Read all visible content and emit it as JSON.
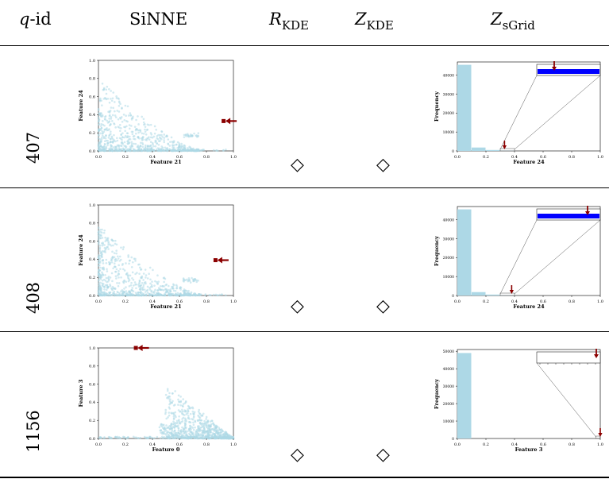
{
  "header": {
    "qid_q": "q",
    "qid_rest": "-id",
    "sinne": "SiNNE",
    "rkde_main": "R",
    "rkde_sub": "KDE",
    "zkde_main": "Z",
    "zkde_sub": "KDE",
    "zsgrid_main": "Z",
    "zsgrid_sub": "sGrid"
  },
  "rows": [
    {
      "qid": "407",
      "rkde": "◇",
      "zkde": "◇",
      "scatter": {
        "xlabel": "Feature 21",
        "ylabel": "Feature 24",
        "query_point": [
          0.93,
          0.33
        ]
      },
      "hist": {
        "xlabel": "Feature 24",
        "ylabel": "Frequency",
        "query_value": 0.33
      }
    },
    {
      "qid": "408",
      "rkde": "◇",
      "zkde": "◇",
      "scatter": {
        "xlabel": "Feature 21",
        "ylabel": "Feature 24",
        "query_point": [
          0.87,
          0.39
        ]
      },
      "hist": {
        "xlabel": "Feature 24",
        "ylabel": "Frequency",
        "query_value": 0.38
      }
    },
    {
      "qid": "1156",
      "rkde": "◇",
      "zkde": "◇",
      "scatter": {
        "xlabel": "Feature 0",
        "ylabel": "Feature 3",
        "query_point": [
          0.28,
          1.0
        ]
      },
      "hist": {
        "xlabel": "Feature 3",
        "ylabel": "Frequency",
        "query_value": 1.0
      }
    }
  ],
  "chart_data": [
    {
      "type": "scatter",
      "panel": "row-407",
      "xlabel": "Feature 21",
      "ylabel": "Feature 24",
      "xlim": [
        0,
        1
      ],
      "ylim": [
        0,
        1
      ],
      "x_ticks": [
        "0.0",
        "0.2",
        "0.4",
        "0.6",
        "0.8",
        "1.0"
      ],
      "y_ticks": [
        "0.0",
        "0.2",
        "0.4",
        "0.6",
        "0.8",
        "1.0"
      ],
      "query_point": {
        "x": 0.93,
        "y": 0.33
      }
    },
    {
      "type": "bar",
      "panel": "row-407",
      "xlabel": "Feature 24",
      "ylabel": "Frequency",
      "categories": [
        "0.0-0.1",
        "0.1-0.2",
        "0.2-0.3",
        "0.3-0.4"
      ],
      "values": [
        45500,
        1800,
        500,
        150
      ],
      "ylim": [
        0,
        47000
      ],
      "x_ticks": [
        "0.0",
        "0.2",
        "0.4",
        "0.6",
        "0.8",
        "1.0"
      ],
      "y_ticks": [
        "0",
        "10000",
        "20000",
        "30000",
        "40000"
      ],
      "query_value": 0.33
    },
    {
      "type": "scatter",
      "panel": "row-408",
      "xlabel": "Feature 21",
      "ylabel": "Feature 24",
      "xlim": [
        0,
        1
      ],
      "ylim": [
        0,
        1
      ],
      "x_ticks": [
        "0.0",
        "0.2",
        "0.4",
        "0.6",
        "0.8",
        "1.0"
      ],
      "y_ticks": [
        "0.0",
        "0.2",
        "0.4",
        "0.6",
        "0.8",
        "1.0"
      ],
      "query_point": {
        "x": 0.87,
        "y": 0.39
      }
    },
    {
      "type": "bar",
      "panel": "row-408",
      "xlabel": "Feature 24",
      "ylabel": "Frequency",
      "categories": [
        "0.0-0.1",
        "0.1-0.2",
        "0.2-0.3",
        "0.3-0.4"
      ],
      "values": [
        45500,
        1800,
        500,
        150
      ],
      "ylim": [
        0,
        47000
      ],
      "x_ticks": [
        "0.0",
        "0.2",
        "0.4",
        "0.6",
        "0.8",
        "1.0"
      ],
      "y_ticks": [
        "0",
        "10000",
        "20000",
        "30000",
        "40000"
      ],
      "query_value": 0.38
    },
    {
      "type": "scatter",
      "panel": "row-1156",
      "xlabel": "Feature 0",
      "ylabel": "Feature 3",
      "xlim": [
        0,
        1
      ],
      "ylim": [
        0,
        1
      ],
      "x_ticks": [
        "0.0",
        "0.2",
        "0.4",
        "0.6",
        "0.8",
        "1.0"
      ],
      "y_ticks": [
        "0.0",
        "0.2",
        "0.4",
        "0.6",
        "0.8",
        "1.0"
      ],
      "query_point": {
        "x": 0.28,
        "y": 1.0
      }
    },
    {
      "type": "bar",
      "panel": "row-1156",
      "xlabel": "Feature 3",
      "ylabel": "Frequency",
      "categories": [
        "0.0-0.1"
      ],
      "values": [
        49000
      ],
      "ylim": [
        0,
        51000
      ],
      "x_ticks": [
        "0.0",
        "0.2",
        "0.4",
        "0.6",
        "0.8",
        "1.0"
      ],
      "y_ticks": [
        "0",
        "10000",
        "20000",
        "30000",
        "40000",
        "50000"
      ],
      "query_value": 1.0
    }
  ],
  "colors": {
    "points": "#add8e6",
    "bars": "#add8e6",
    "arrow": "#8b0000",
    "inset_bar": "#0000ff",
    "rules": "#000000"
  }
}
